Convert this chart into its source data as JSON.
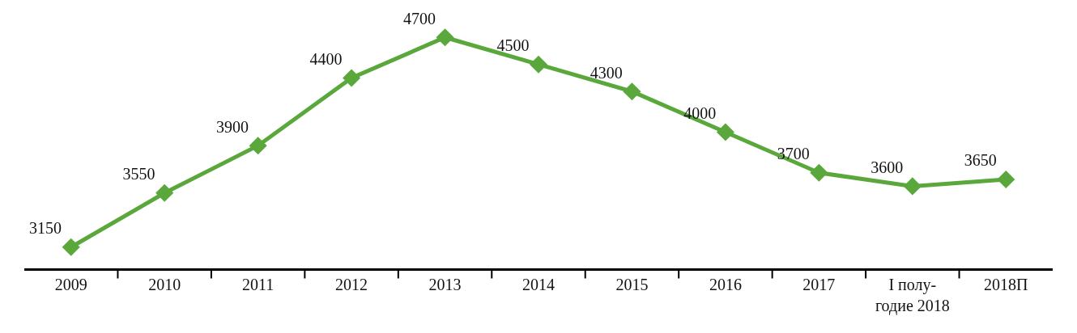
{
  "chart_data": {
    "type": "line",
    "categories": [
      "2009",
      "2010",
      "2011",
      "2012",
      "2013",
      "2014",
      "2015",
      "2016",
      "2017",
      "I полу-\nгодие 2018",
      "2018П"
    ],
    "series": [
      {
        "color": "#5aa83c",
        "values": [
          3150,
          3550,
          3900,
          4400,
          4700,
          4500,
          4300,
          4000,
          3700,
          3600,
          3650
        ]
      }
    ],
    "data_labels": true,
    "marker": "diamond",
    "line_style": "solid",
    "tick_labels": "x"
  }
}
